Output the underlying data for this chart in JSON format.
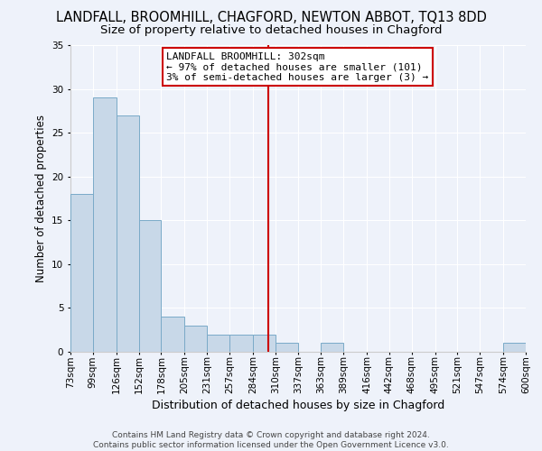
{
  "title": "LANDFALL, BROOMHILL, CHAGFORD, NEWTON ABBOT, TQ13 8DD",
  "subtitle": "Size of property relative to detached houses in Chagford",
  "xlabel": "Distribution of detached houses by size in Chagford",
  "ylabel": "Number of detached properties",
  "bar_color": "#c8d8e8",
  "bar_edge_color": "#7aaac8",
  "background_color": "#eef2fa",
  "grid_color": "#ffffff",
  "bins": [
    73,
    99,
    126,
    152,
    178,
    205,
    231,
    257,
    284,
    310,
    337,
    363,
    389,
    416,
    442,
    468,
    495,
    521,
    547,
    574,
    600
  ],
  "bin_labels": [
    "73sqm",
    "99sqm",
    "126sqm",
    "152sqm",
    "178sqm",
    "205sqm",
    "231sqm",
    "257sqm",
    "284sqm",
    "310sqm",
    "337sqm",
    "363sqm",
    "389sqm",
    "416sqm",
    "442sqm",
    "468sqm",
    "495sqm",
    "521sqm",
    "547sqm",
    "574sqm",
    "600sqm"
  ],
  "counts": [
    18,
    29,
    27,
    15,
    4,
    3,
    2,
    2,
    2,
    1,
    0,
    1,
    0,
    0,
    0,
    0,
    0,
    0,
    0,
    1
  ],
  "vline_x": 302,
  "vline_color": "#cc0000",
  "annotation_text": "LANDFALL BROOMHILL: 302sqm\n← 97% of detached houses are smaller (101)\n3% of semi-detached houses are larger (3) →",
  "annotation_box_color": "#ffffff",
  "annotation_edge_color": "#cc0000",
  "ylim": [
    0,
    35
  ],
  "yticks": [
    0,
    5,
    10,
    15,
    20,
    25,
    30,
    35
  ],
  "footer_text": "Contains HM Land Registry data © Crown copyright and database right 2024.\nContains public sector information licensed under the Open Government Licence v3.0.",
  "title_fontsize": 10.5,
  "subtitle_fontsize": 9.5,
  "xlabel_fontsize": 9,
  "ylabel_fontsize": 8.5,
  "tick_fontsize": 7.5,
  "annotation_fontsize": 8,
  "footer_fontsize": 6.5
}
